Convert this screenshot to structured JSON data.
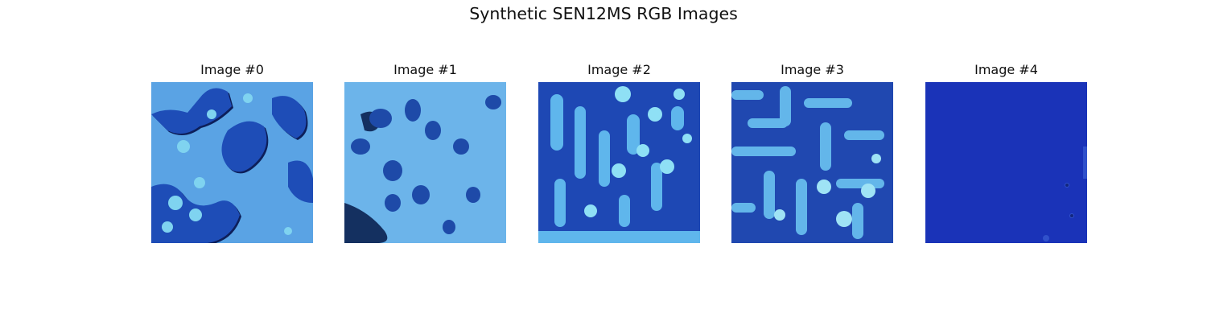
{
  "figure": {
    "title": "Synthetic SEN12MS RGB Images"
  },
  "panels": [
    {
      "title": "Image #0",
      "icon": "satellite-texture-0",
      "colors": {
        "base": "#5aa3e4",
        "blob": "#1e4db7",
        "edge": "#0d1f5a",
        "light": "#7fd3f0"
      }
    },
    {
      "title": "Image #1",
      "icon": "satellite-texture-1",
      "colors": {
        "base": "#6cb4ea",
        "blob": "#1e4aa8",
        "edge": "#143060",
        "light": "#9ad8f3"
      }
    },
    {
      "title": "Image #2",
      "icon": "satellite-texture-2",
      "colors": {
        "base": "#1e48b4",
        "blob": "#5fb6ec",
        "edge": "#0b1d5a",
        "light": "#8fe0f5"
      }
    },
    {
      "title": "Image #3",
      "icon": "satellite-texture-3",
      "colors": {
        "base": "#2048b0",
        "blob": "#63b6ea",
        "edge": "#0b1b4f",
        "light": "#9fe3f5"
      }
    },
    {
      "title": "Image #4",
      "icon": "satellite-texture-4",
      "colors": {
        "base": "#1a33b8",
        "blob": "#1a33b8",
        "edge": "#0c1c6a",
        "light": "#3f66d8"
      }
    }
  ]
}
